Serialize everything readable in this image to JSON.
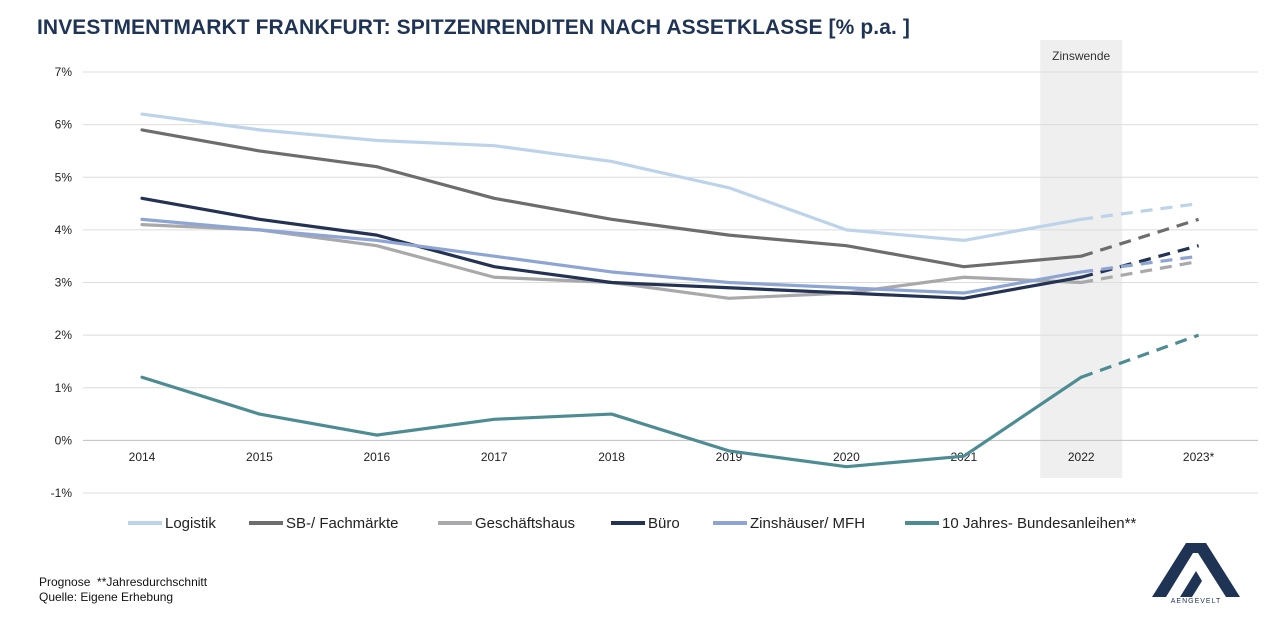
{
  "title": "INVESTMENTMARKT FRANKFURT: SPITZENRENDITEN NACH ASSETKLASSE [% p.a. ]",
  "notes": {
    "line1": "Prognose  **Jahresdurchschnitt",
    "line2": "Quelle: Eigene Erhebung"
  },
  "logo": {
    "text": "AENGEVELT",
    "color": "#1f3354"
  },
  "chart_data": {
    "type": "line",
    "title": "INVESTMENTMARKT FRANKFURT: SPITZENRENDITEN NACH ASSETKLASSE [% p.a. ]",
    "categories": [
      "2014",
      "2015",
      "2016",
      "2017",
      "2018",
      "2019",
      "2020",
      "2021",
      "2022",
      "2023*"
    ],
    "y_ticks": [
      "-1%",
      "0%",
      "1%",
      "2%",
      "3%",
      "4%",
      "5%",
      "6%",
      "7%"
    ],
    "ylim": [
      -1,
      7
    ],
    "grid": true,
    "legend_position": "bottom",
    "highlight_band": {
      "category": "2022",
      "label": "Zinswende",
      "color": "#efefef"
    },
    "forecast_from_category": "2022",
    "series": [
      {
        "name": "Logistik",
        "color": "#bcd3ea",
        "values": [
          6.2,
          5.9,
          5.7,
          5.6,
          5.3,
          4.8,
          4.0,
          3.8,
          4.2,
          4.5
        ]
      },
      {
        "name": "SB-/ Fachmärkte",
        "color": "#6d6d6d",
        "values": [
          5.9,
          5.5,
          5.2,
          4.6,
          4.2,
          3.9,
          3.7,
          3.3,
          3.5,
          4.2
        ]
      },
      {
        "name": "Geschäftshaus",
        "color": "#a9a9ab",
        "values": [
          4.1,
          4.0,
          3.7,
          3.1,
          3.0,
          2.7,
          2.8,
          3.1,
          3.0,
          3.4
        ]
      },
      {
        "name": "Büro",
        "color": "#243353",
        "values": [
          4.6,
          4.2,
          3.9,
          3.3,
          3.0,
          2.9,
          2.8,
          2.7,
          3.1,
          3.7
        ]
      },
      {
        "name": "Zinshäuser/ MFH",
        "color": "#8ea5d4",
        "values": [
          4.2,
          4.0,
          3.8,
          3.5,
          3.2,
          3.0,
          2.9,
          2.8,
          3.2,
          3.5
        ]
      },
      {
        "name": "10 Jahres- Bundesanleihen**",
        "color": "#4e8c94",
        "values": [
          1.2,
          0.5,
          0.1,
          0.4,
          0.5,
          -0.2,
          -0.5,
          -0.3,
          1.2,
          2.0
        ]
      }
    ]
  }
}
